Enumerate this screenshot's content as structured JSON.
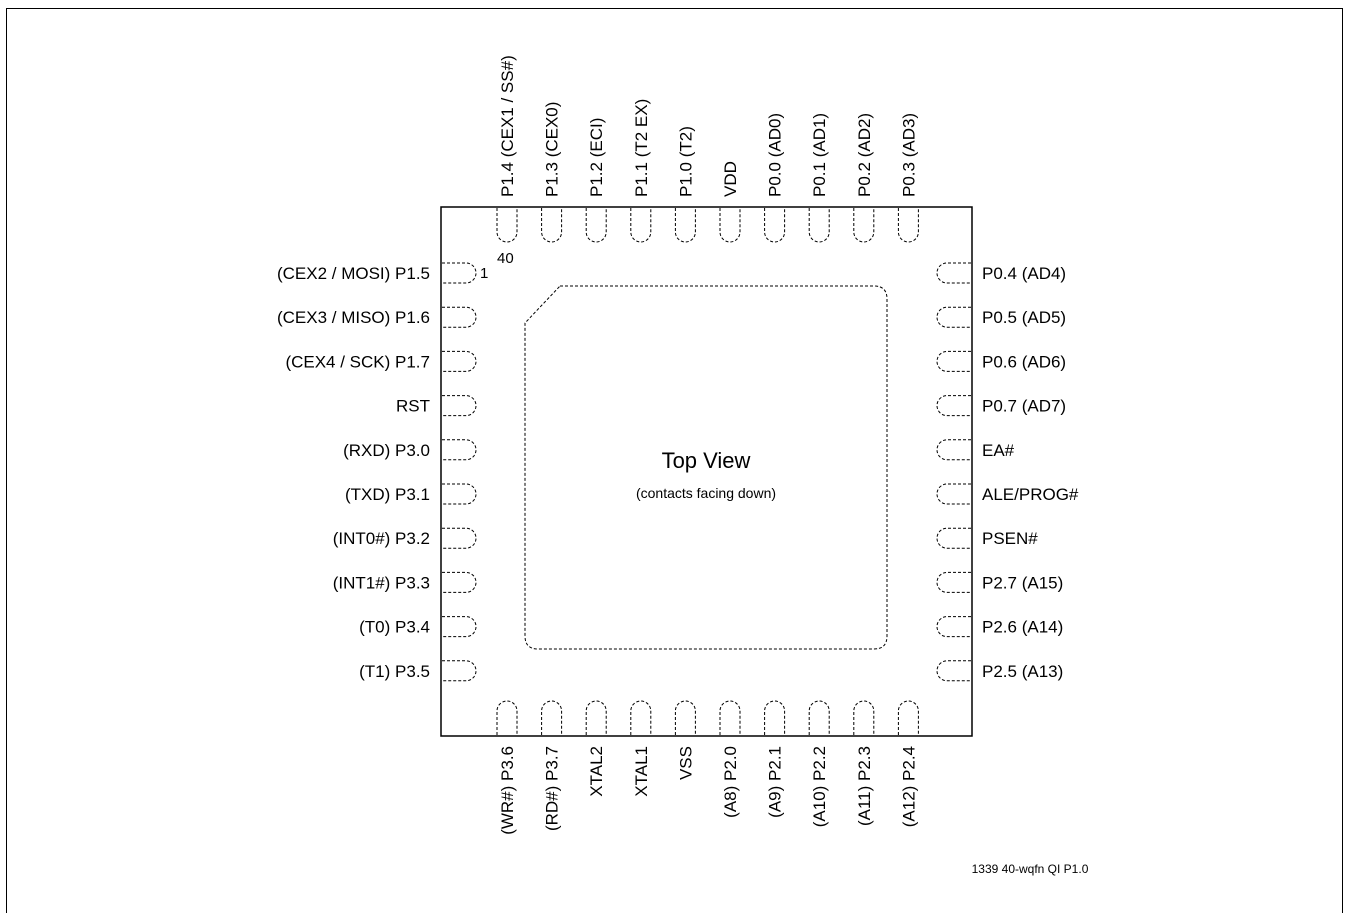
{
  "diagram": {
    "center_title": "Top View",
    "center_subtitle": "(contacts facing down)",
    "pin1_marker": "1",
    "pin40_marker": "40",
    "footer_id": "1339 40-wqfn QI P1.0",
    "pins_left": [
      "(CEX2 / MOSI) P1.5",
      "(CEX3 / MISO) P1.6",
      "(CEX4 / SCK) P1.7",
      "RST",
      "(RXD) P3.0",
      "(TXD) P3.1",
      "(INT0#) P3.2",
      "(INT1#) P3.3",
      "(T0) P3.4",
      "(T1) P3.5"
    ],
    "pins_right": [
      "P0.4 (AD4)",
      "P0.5 (AD5)",
      "P0.6 (AD6)",
      "P0.7 (AD7)",
      "EA#",
      "ALE/PROG#",
      "PSEN#",
      "P2.7 (A15)",
      "P2.6 (A14)",
      "P2.5 (A13)"
    ],
    "pins_top": [
      "P1.4 (CEX1 / SS#)",
      "P1.3 (CEX0)",
      "P1.2 (ECI)",
      "P1.1 (T2 EX)",
      "P1.0 (T2)",
      "VDD",
      "P0.0 (AD0)",
      "P0.1 (AD1)",
      "P0.2 (AD2)",
      "P0.3 (AD3)"
    ],
    "pins_bottom": [
      "(WR#) P3.6",
      "(RD#) P3.7",
      "XTAL2",
      "XTAL1",
      "VSS",
      "(A8) P2.0",
      "(A9) P2.1",
      "(A10) P2.2",
      "(A11) P2.3",
      "(A12) P2.4"
    ]
  }
}
